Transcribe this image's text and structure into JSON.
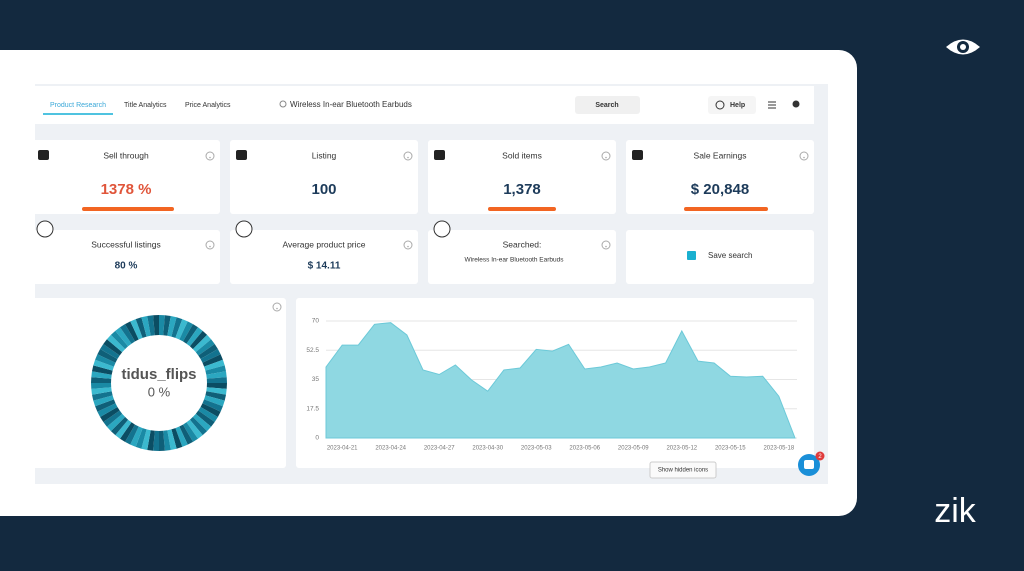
{
  "nav": {
    "tabs": [
      "Product Research",
      "Title Analytics",
      "Price Analytics"
    ],
    "search_query": "Wireless In-ear Bluetooth Earbuds",
    "search_button": "Search",
    "help": "Help"
  },
  "stats": [
    {
      "label": "Sell through",
      "value": "1378 %"
    },
    {
      "label": "Listing",
      "value": "100"
    },
    {
      "label": "Sold items",
      "value": "1,378"
    },
    {
      "label": "Sale Earnings",
      "value": "$ 20,848"
    }
  ],
  "details": [
    {
      "label": "Successful listings",
      "value": "80 %"
    },
    {
      "label": "Average product price",
      "value": "$ 14.11"
    },
    {
      "label": "Searched:",
      "value": "Wireless In-ear Bluetooth Earbuds"
    }
  ],
  "save_search": "Save search",
  "donut": {
    "name": "tidus_flips",
    "share": "0 %"
  },
  "chart_data": {
    "type": "area",
    "categories": [
      null,
      "2023-04-21",
      null,
      null,
      "2023-04-24",
      null,
      null,
      "2023-04-27",
      null,
      null,
      "2023-04-30",
      null,
      null,
      "2023-05-03",
      null,
      null,
      "2023-05-06",
      null,
      null,
      "2023-05-09",
      null,
      null,
      "2023-05-12",
      null,
      null,
      "2023-05-15",
      null,
      null,
      "2023-05-18",
      null
    ],
    "values": [
      42.5,
      55.6,
      55.6,
      68,
      69,
      61.6,
      40.7,
      38,
      43.7,
      34.7,
      28,
      40.7,
      41.9,
      53,
      52,
      56,
      41.3,
      42.5,
      44.9,
      41.3,
      42.5,
      44.9,
      64,
      46,
      44.9,
      37,
      36.5,
      37,
      25,
      0
    ],
    "ylim": [
      0,
      70
    ],
    "yticks": [
      0,
      17.5,
      35,
      52.5,
      70
    ],
    "color": "#8fd8e2",
    "grid": true
  },
  "tooltip": "Show hidden icons",
  "badge": "2",
  "logo": "zik"
}
